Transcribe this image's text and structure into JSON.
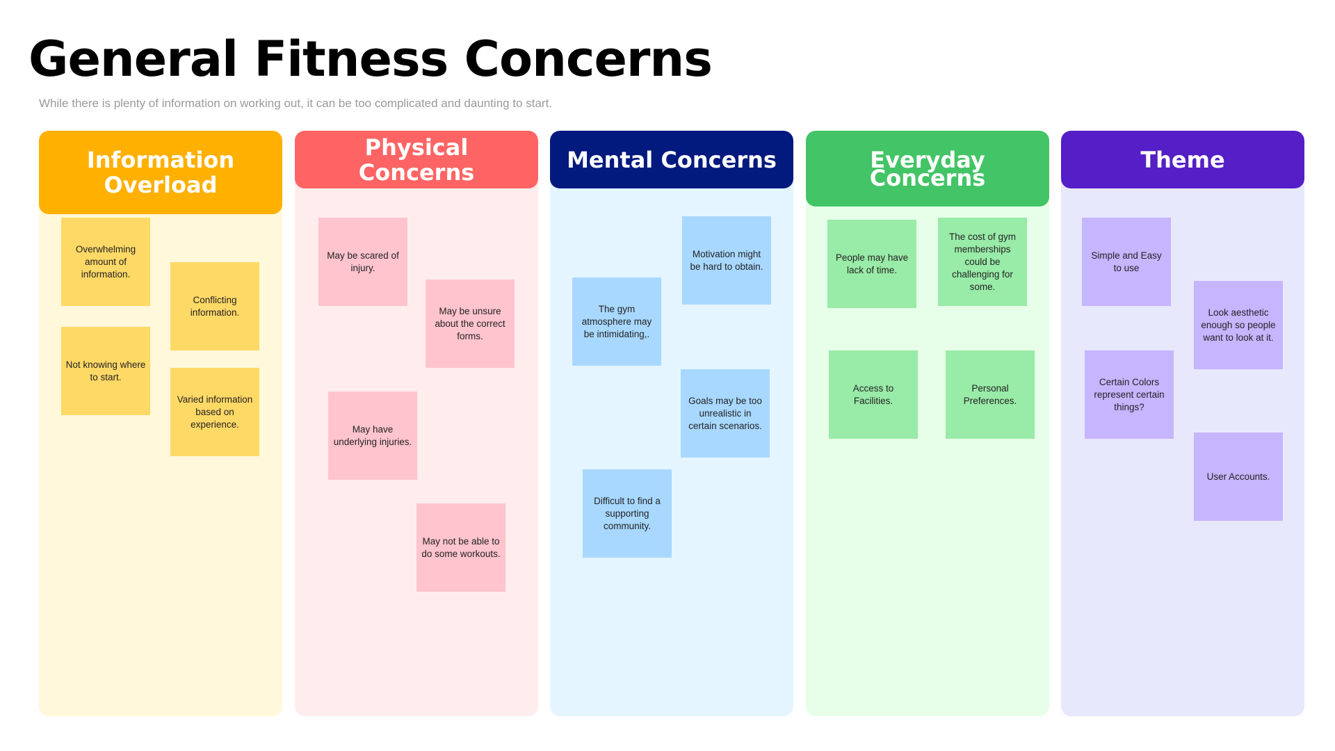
{
  "page": {
    "title": "General Fitness Concerns",
    "subtitle": "While there is plenty of information on working out, it can be too complicated and daunting to start."
  },
  "columns": [
    {
      "title": "Information Overload",
      "header_color": "#FFB000",
      "body_color": "#FFF8DA",
      "note_color": "#FFD966",
      "notes": [
        "Overwhelming amount of information.",
        "Conflicting information.",
        "Not knowing where to start.",
        "Varied information based on experience."
      ]
    },
    {
      "title": "Physical Concerns",
      "header_color": "#FF6464",
      "body_color": "#FFEDEE",
      "note_color": "#FFC4CD",
      "notes": [
        "May be scared of injury.",
        "May be unsure about the correct forms.",
        "May have underlying injuries.",
        "May not be able to do some workouts."
      ]
    },
    {
      "title": "Mental Concerns",
      "header_color": "#02197E",
      "body_color": "#E5F5FF",
      "note_color": "#A8D8FF",
      "notes": [
        "Motivation might be hard to obtain.",
        "The gym atmosphere may be intimidating,.",
        "Goals may be too unrealistic in certain scenarios.",
        "Difficult to find a supporting community."
      ]
    },
    {
      "title": "Everyday Concerns",
      "header_color": "#43C466",
      "body_color": "#E7FFE9",
      "note_color": "#99EBA8",
      "notes": [
        "People may have lack of time.",
        "The cost of gym memberships could be challenging for some.",
        "Access to Facilities.",
        "Personal Preferences."
      ]
    },
    {
      "title": "Theme",
      "header_color": "#551EC7",
      "body_color": "#E8E8FD",
      "note_color": "#C6B5FF",
      "notes": [
        "Simple and Easy to use",
        "Look aesthetic enough so people want to look at it.",
        "Certain Colors represent certain things?",
        "User Accounts."
      ]
    }
  ]
}
